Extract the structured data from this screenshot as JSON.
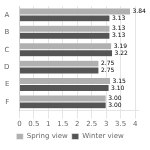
{
  "chart_data": {
    "type": "bar",
    "orientation": "horizontal",
    "categories": [
      "F",
      "E",
      "D",
      "C",
      "B",
      "A"
    ],
    "series": [
      {
        "name": "Spring view",
        "color": "#b0b0b0",
        "values": [
          3.0,
          3.15,
          2.75,
          3.19,
          3.13,
          3.84
        ],
        "value_labels": [
          "3.00",
          "3.15",
          "2.75",
          "3.19",
          "3.13",
          "3.84"
        ]
      },
      {
        "name": "Winter view",
        "color": "#555555",
        "values": [
          3.0,
          3.1,
          2.75,
          3.22,
          3.13,
          3.13
        ],
        "value_labels": [
          "3.00",
          "3.10",
          "2.75",
          "3.22",
          "3.13",
          "3.13"
        ]
      }
    ],
    "xlim": [
      0,
      4.1
    ],
    "xticks": [
      0,
      0.5,
      1,
      1.5,
      2,
      2.5,
      3,
      3.5,
      4
    ],
    "grid": true,
    "legend": "bottom",
    "data_labels": true
  }
}
